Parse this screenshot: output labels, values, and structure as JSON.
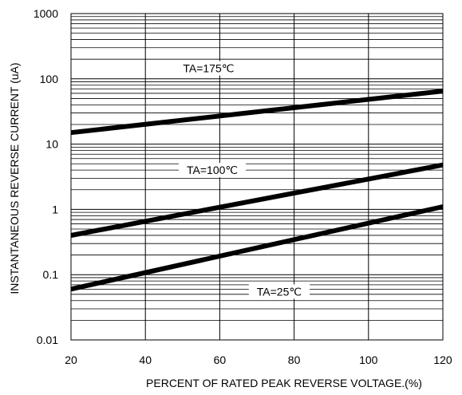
{
  "chart_data": {
    "type": "line",
    "title": "",
    "xlabel": "PERCENT OF RATED PEAK REVERSE VOLTAGE.(%)",
    "ylabel": "INSTANTANEOUS REVERSE CURRENT (uA)",
    "xlim": [
      20,
      120
    ],
    "ylim": [
      0.01,
      1000
    ],
    "yscale": "log",
    "grid": true,
    "x_ticks": [
      20,
      40,
      60,
      80,
      100,
      120
    ],
    "x_tick_labels": [
      "20",
      "40",
      "60",
      "80",
      "100",
      "120"
    ],
    "y_ticks": [
      0.01,
      0.1,
      1,
      10,
      100,
      1000
    ],
    "y_tick_labels": [
      "0.01",
      "0.1",
      "1",
      "10",
      "100",
      "1000"
    ],
    "series": [
      {
        "name": "TA=175℃",
        "x": [
          20,
          120
        ],
        "y": [
          15,
          65
        ],
        "label_at": [
          57,
          145
        ]
      },
      {
        "name": "TA=100℃",
        "x": [
          20,
          120
        ],
        "y": [
          0.4,
          4.8
        ],
        "label_at": [
          58,
          4
        ]
      },
      {
        "name": "TA=25℃",
        "x": [
          20,
          120
        ],
        "y": [
          0.06,
          1.1
        ],
        "label_at": [
          76,
          0.055
        ]
      }
    ],
    "line_color": "#000000"
  }
}
